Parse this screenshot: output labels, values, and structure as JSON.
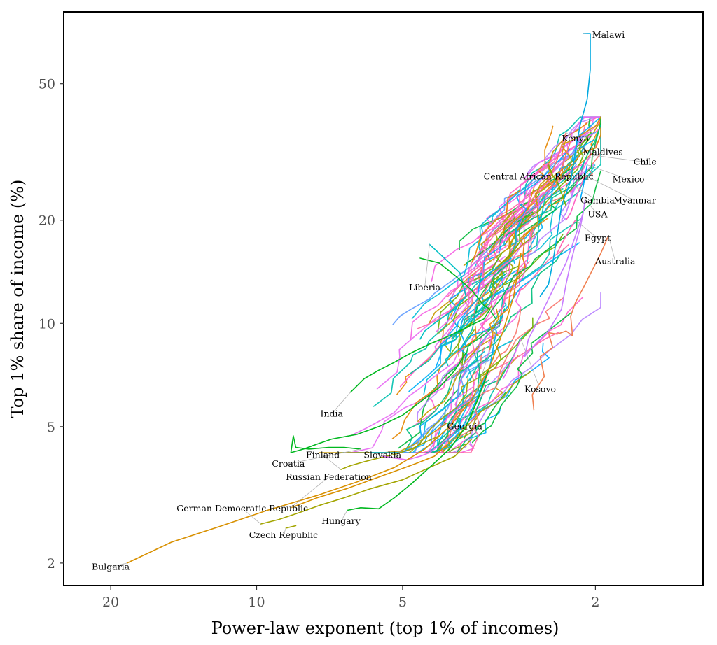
{
  "chart_data": {
    "type": "line",
    "xlabel": "Power-law exponent (top 1% of incomes)",
    "ylabel": "Top 1% share of income (%)",
    "x_scale": "log-reversed",
    "y_scale": "log",
    "xlim": [
      25,
      1.2
    ],
    "ylim": [
      1.72,
      81
    ],
    "xticks": [
      20,
      10,
      5,
      2
    ],
    "yticks": [
      2,
      5,
      10,
      20,
      50
    ],
    "labeled_series": [
      {
        "name": "Malawi",
        "color": "#00a9e0",
        "x": [
          2.12,
          2.05,
          2.05,
          2.08,
          2.15,
          2.2,
          2.25,
          2.35,
          2.4,
          2.45,
          2.5,
          2.6
        ],
        "y": [
          70,
          70,
          55,
          45,
          38,
          32,
          26,
          22,
          18,
          15,
          13,
          12
        ]
      },
      {
        "name": "Kenya",
        "color": "#f8766d",
        "x": [
          2.3,
          2.35,
          2.4,
          2.45,
          2.5,
          2.42,
          2.32,
          2.25
        ],
        "y": [
          36,
          33,
          30,
          28,
          26,
          25,
          30,
          34
        ]
      },
      {
        "name": "Maldives",
        "color": "#00bfc4",
        "x": [
          2.1,
          2.15,
          2.2,
          2.25,
          2.3
        ],
        "y": [
          30,
          28,
          27,
          26,
          25
        ]
      },
      {
        "name": "Chile",
        "color": "#f564e3",
        "x": [
          2.05,
          2.1,
          2.15,
          2.2,
          2.25
        ],
        "y": [
          31,
          29,
          27,
          25,
          24
        ]
      },
      {
        "name": "Central African Republic",
        "color": "#7cae00",
        "x": [
          2.5,
          2.45,
          2.4,
          2.35,
          2.3
        ],
        "y": [
          29,
          27,
          26,
          24,
          22
        ]
      },
      {
        "name": "Mexico",
        "color": "#00a9ff",
        "x": [
          2.08,
          2.1,
          2.12,
          2.15
        ],
        "y": [
          29,
          27,
          25,
          23
        ]
      },
      {
        "name": "Gambia",
        "color": "#c77cff",
        "x": [
          2.2,
          2.25,
          2.3,
          2.35
        ],
        "y": [
          25,
          23,
          21,
          20
        ]
      },
      {
        "name": "Myanmar",
        "color": "#ff61c3",
        "x": [
          2.1,
          2.15,
          2.2,
          2.25,
          2.3
        ],
        "y": [
          27,
          25,
          23,
          21,
          20
        ]
      },
      {
        "name": "USA",
        "color": "#c77cff",
        "x": [
          2.1,
          2.12,
          2.15,
          2.2,
          2.25,
          2.3,
          2.35,
          2.5,
          2.7,
          2.8,
          2.75,
          2.6,
          2.45,
          2.3,
          2.2,
          2.12
        ],
        "y": [
          23,
          21,
          19,
          17,
          15,
          13,
          11,
          9.5,
          8.5,
          8,
          9,
          10.5,
          12.5,
          15,
          18,
          21
        ]
      },
      {
        "name": "Egypt",
        "color": "#ff64b0",
        "x": [
          2.2,
          2.25,
          2.3,
          2.35,
          2.4
        ],
        "y": [
          20,
          19,
          18,
          17,
          16
        ]
      },
      {
        "name": "Australia",
        "color": "#f07f4f",
        "x": [
          1.88,
          1.95,
          2.02,
          2.1,
          2.2,
          2.25,
          2.23,
          2.3,
          2.4,
          2.5,
          2.45,
          2.6,
          2.55,
          2.7,
          2.68
        ],
        "y": [
          18,
          16,
          14.5,
          13,
          11.5,
          10.5,
          9.2,
          9.5,
          9.3,
          9.4,
          8.5,
          8,
          7,
          6.2,
          5.6
        ]
      },
      {
        "name": "Liberia",
        "color": "#00bfc4",
        "x": [
          4.4,
          4.2,
          4.0,
          3.8,
          3.7,
          3.9,
          4.1,
          4.3,
          4.5,
          4.6
        ],
        "y": [
          17,
          16,
          15,
          14,
          12,
          11,
          10.5,
          10,
          9.5,
          9
        ]
      },
      {
        "name": "India",
        "color": "#00b81f",
        "x": [
          6.4,
          6.0,
          5.6,
          5.2,
          4.8,
          4.4,
          4.0,
          3.6,
          3.4,
          3.3,
          3.4,
          3.6,
          3.9,
          4.2,
          4.6
        ],
        "y": [
          6.3,
          6.9,
          7.3,
          7.7,
          8.2,
          8.7,
          9.2,
          9.9,
          10.3,
          11,
          11.3,
          12.5,
          13.8,
          15,
          15.5
        ]
      },
      {
        "name": "Kosovo",
        "color": "#e76bf3",
        "x": [
          2.85,
          2.9,
          2.95,
          3.0,
          3.05,
          3.1
        ],
        "y": [
          9.0,
          8.5,
          8.0,
          7.6,
          7.2,
          6.9
        ]
      },
      {
        "name": "Georgia",
        "color": "#00b0f6",
        "x": [
          3.2,
          3.25,
          3.3,
          3.4,
          3.5,
          3.6,
          3.7,
          3.8
        ],
        "y": [
          9.5,
          8.5,
          7.5,
          6.8,
          6.1,
          5.6,
          5.2,
          4.9
        ]
      },
      {
        "name": "Croatia",
        "color": "#00b81f",
        "x": [
          6.1,
          6.6,
          7.1,
          7.8,
          8.3,
          8.4,
          8.5,
          8.0,
          7.5,
          7.0,
          6.2,
          5.6,
          5.0,
          4.6,
          4.2,
          3.9,
          3.7
        ],
        "y": [
          4.3,
          4.35,
          4.35,
          4.3,
          4.35,
          4.7,
          4.2,
          4.3,
          4.45,
          4.6,
          4.75,
          5.0,
          5.4,
          5.9,
          6.5,
          7.3,
          8.2
        ]
      },
      {
        "name": "Finland",
        "color": "#a3a500",
        "x": [
          6.7,
          6.4,
          6.0,
          5.6,
          5.2,
          4.8,
          4.5,
          4.2
        ],
        "y": [
          3.75,
          3.85,
          3.95,
          4.05,
          4.15,
          4.3,
          4.5,
          4.7
        ]
      },
      {
        "name": "Slovakia",
        "color": "#e76bf3",
        "x": [
          5.5,
          5.2,
          4.9,
          4.6,
          4.4,
          4.2,
          4.0
        ],
        "y": [
          4.1,
          4.05,
          4.0,
          4.1,
          4.2,
          4.4,
          4.7
        ]
      },
      {
        "name": "Russian Federation",
        "color": "#d89000",
        "x": [
          8.5,
          7.5,
          6.5,
          5.8,
          5.2,
          4.7,
          4.3,
          4.0
        ],
        "y": [
          2.9,
          3.1,
          3.3,
          3.5,
          3.7,
          3.9,
          4.1,
          4.5
        ]
      },
      {
        "name": "German Democratic Republic",
        "color": "#a3a500",
        "x": [
          9.8,
          9.0,
          8.2,
          7.4,
          6.6,
          5.8,
          5.0,
          4.4,
          3.9,
          3.6
        ],
        "y": [
          2.6,
          2.68,
          2.8,
          2.95,
          3.1,
          3.3,
          3.5,
          3.8,
          4.1,
          4.6
        ]
      },
      {
        "name": "Czech Republic",
        "color": "#a3a500",
        "x": [
          8.7,
          8.5,
          8.3
        ],
        "y": [
          2.53,
          2.55,
          2.57
        ]
      },
      {
        "name": "Hungary",
        "color": "#00b81f",
        "x": [
          6.5,
          6.1,
          5.6,
          5.2,
          4.8,
          4.4,
          4.0,
          3.7,
          3.5,
          3.3
        ],
        "y": [
          2.85,
          2.9,
          2.88,
          3.1,
          3.4,
          3.8,
          4.3,
          5.0,
          6.0,
          7.5
        ]
      },
      {
        "name": "Bulgaria",
        "color": "#d89000",
        "x": [
          18.5,
          15,
          12,
          9.5,
          7.5,
          6.2,
          5.2,
          4.5,
          4.0,
          3.6,
          3.3,
          3.1,
          2.95,
          2.85
        ],
        "y": [
          2.0,
          2.3,
          2.55,
          2.85,
          3.15,
          3.45,
          3.8,
          4.3,
          5.0,
          6.0,
          7.5,
          9.5,
          12,
          16
        ]
      }
    ],
    "labels": [
      {
        "text": "Malawi",
        "x": 1.88,
        "y": 68
      },
      {
        "text": "Kenya",
        "x": 2.2,
        "y": 34
      },
      {
        "text": "Maldives",
        "x": 1.93,
        "y": 31
      },
      {
        "text": "Chile",
        "x": 1.58,
        "y": 29
      },
      {
        "text": "Central African Republic",
        "x": 2.62,
        "y": 26.3
      },
      {
        "text": "Mexico",
        "x": 1.71,
        "y": 25.8
      },
      {
        "text": "Gambia",
        "x": 1.98,
        "y": 22.4
      },
      {
        "text": "Myanmar",
        "x": 1.66,
        "y": 22.4
      },
      {
        "text": "USA",
        "x": 1.98,
        "y": 20.4
      },
      {
        "text": "Egypt",
        "x": 1.98,
        "y": 17.4
      },
      {
        "text": "Australia",
        "x": 1.82,
        "y": 14.9
      },
      {
        "text": "Liberia",
        "x": 4.5,
        "y": 12.5
      },
      {
        "text": "India",
        "x": 7.0,
        "y": 5.35
      },
      {
        "text": "Kosovo",
        "x": 2.6,
        "y": 6.3
      },
      {
        "text": "Georgia",
        "x": 3.72,
        "y": 4.92
      },
      {
        "text": "Croatia",
        "x": 8.6,
        "y": 3.82
      },
      {
        "text": "Finland",
        "x": 7.3,
        "y": 4.05
      },
      {
        "text": "Slovakia",
        "x": 5.5,
        "y": 4.05
      },
      {
        "text": "Russian Federation",
        "x": 7.1,
        "y": 3.5
      },
      {
        "text": "German Democratic Republic",
        "x": 10.7,
        "y": 2.83
      },
      {
        "text": "Czech Republic",
        "x": 8.8,
        "y": 2.37
      },
      {
        "text": "Hungary",
        "x": 6.7,
        "y": 2.6
      },
      {
        "text": "Bulgaria",
        "x": 20.0,
        "y": 1.91
      }
    ]
  }
}
